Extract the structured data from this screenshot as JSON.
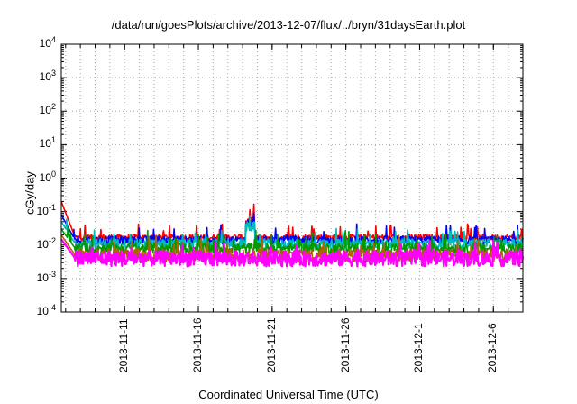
{
  "chart_data": {
    "type": "line",
    "title": "/data/run/goesPlots/archive/2013-12-07/flux/../bryn/31daysEarth.plot",
    "xlabel": "Coordinated Universal Time (UTC)",
    "ylabel": "cGy/day",
    "yscale": "log",
    "ylim": [
      0.0001,
      10000
    ],
    "xlim": [
      "2013-11-06T17:00",
      "2013-12-08T00:00"
    ],
    "grid": true,
    "ytick_labels": [
      {
        "base": "10",
        "exp": "-4"
      },
      {
        "base": "10",
        "exp": "-3"
      },
      {
        "base": "10",
        "exp": "-2"
      },
      {
        "base": "10",
        "exp": "-1"
      },
      {
        "base": "10",
        "exp": "0"
      },
      {
        "base": "10",
        "exp": "1"
      },
      {
        "base": "10",
        "exp": "2"
      },
      {
        "base": "10",
        "exp": "3"
      },
      {
        "base": "10",
        "exp": "4"
      }
    ],
    "xtick_labels": [
      "2013-11-11",
      "2013-11-16",
      "2013-11-21",
      "2013-11-26",
      "2013-12-1",
      "2013-12-6"
    ],
    "xtick_dates": [
      "2013-11-11",
      "2013-11-16",
      "2013-11-21",
      "2013-11-26",
      "2013-12-01",
      "2013-12-06"
    ],
    "series": [
      {
        "color": "#ff0000",
        "baseline": 0.017,
        "start": 0.2,
        "spread": 0.09
      },
      {
        "color": "#0000ff",
        "baseline": 0.014,
        "start": 0.08,
        "spread": 0.12
      },
      {
        "color": "#00bbbb",
        "baseline": 0.011,
        "start": 0.05,
        "spread": 0.14
      },
      {
        "color": "#009900",
        "baseline": 0.008,
        "start": 0.03,
        "spread": 0.16
      },
      {
        "color": "#aa6600",
        "baseline": 0.005,
        "start": 0.02,
        "spread": 0.2
      },
      {
        "color": "#ff00ff",
        "baseline": 0.004,
        "start": 0.015,
        "spread": 0.24
      }
    ]
  }
}
